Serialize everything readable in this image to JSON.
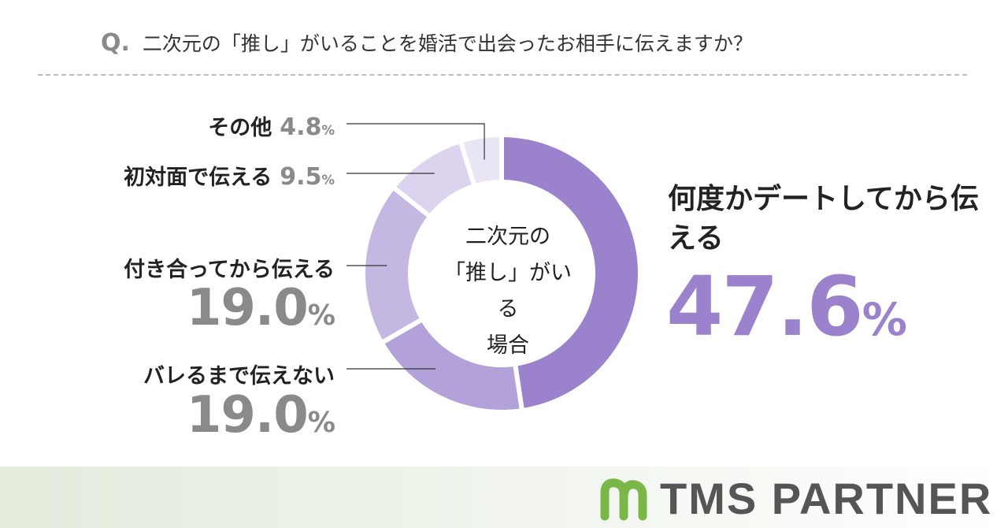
{
  "question": {
    "marker": "Q.",
    "text": "二次元の「推し」がいることを婚活で出会ったお相手に伝えますか？"
  },
  "center_label": {
    "line1": "二次元の",
    "line2": "「推し」がいる",
    "line3": "場合"
  },
  "percent_unit": "%",
  "brand": {
    "name": "TMS PARTNER",
    "logo": "leaf-m-logo",
    "color": "#7ab648"
  },
  "colors": {
    "primary": "#9a82cc",
    "gray_text": "#8a8a8a"
  },
  "chart_data": {
    "type": "pie",
    "style": "donut",
    "start": "top, clockwise",
    "slices": [
      {
        "label": "何度かデートしてから伝える",
        "value": 47.6,
        "color": "#9a82cc"
      },
      {
        "label": "バレるまで伝えない",
        "value": 19.0,
        "color": "#b2a2d9"
      },
      {
        "label": "付き合ってから伝える",
        "value": 19.0,
        "color": "#c4b7e2"
      },
      {
        "label": "初対面で伝える",
        "value": 9.5,
        "color": "#dcd3ee"
      },
      {
        "label": "その他",
        "value": 4.8,
        "color": "#e9e5f4"
      }
    ]
  }
}
